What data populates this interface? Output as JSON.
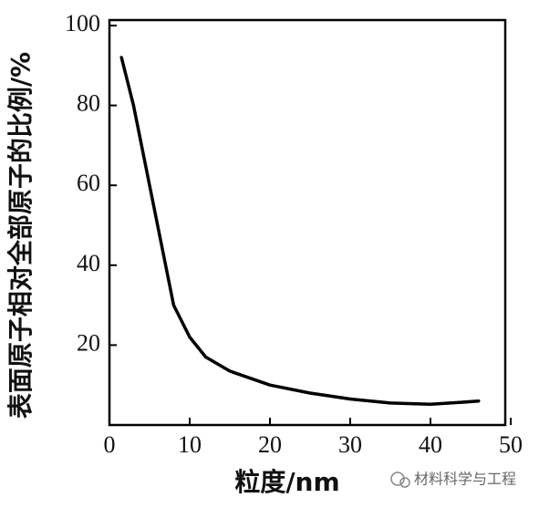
{
  "chart_data": {
    "type": "line",
    "x_label": "粒度/nm",
    "y_label": "表面原子相对全部原子的比例/%",
    "x": [
      1.5,
      3,
      5,
      7,
      8,
      10,
      12,
      15,
      20,
      25,
      30,
      35,
      40,
      44,
      46
    ],
    "values": [
      92,
      80,
      60,
      40,
      30,
      22,
      17,
      13.5,
      10,
      8,
      6.5,
      5.5,
      5.2,
      5.7,
      6
    ],
    "color": "#000000",
    "xlim": [
      0,
      50
    ],
    "xticks": [
      0,
      10,
      20,
      30,
      40,
      50
    ],
    "ylim": [
      0,
      100
    ],
    "yticks": [
      20,
      40,
      60,
      80,
      100
    ],
    "grid": false
  },
  "watermark": "材料科学与工程"
}
